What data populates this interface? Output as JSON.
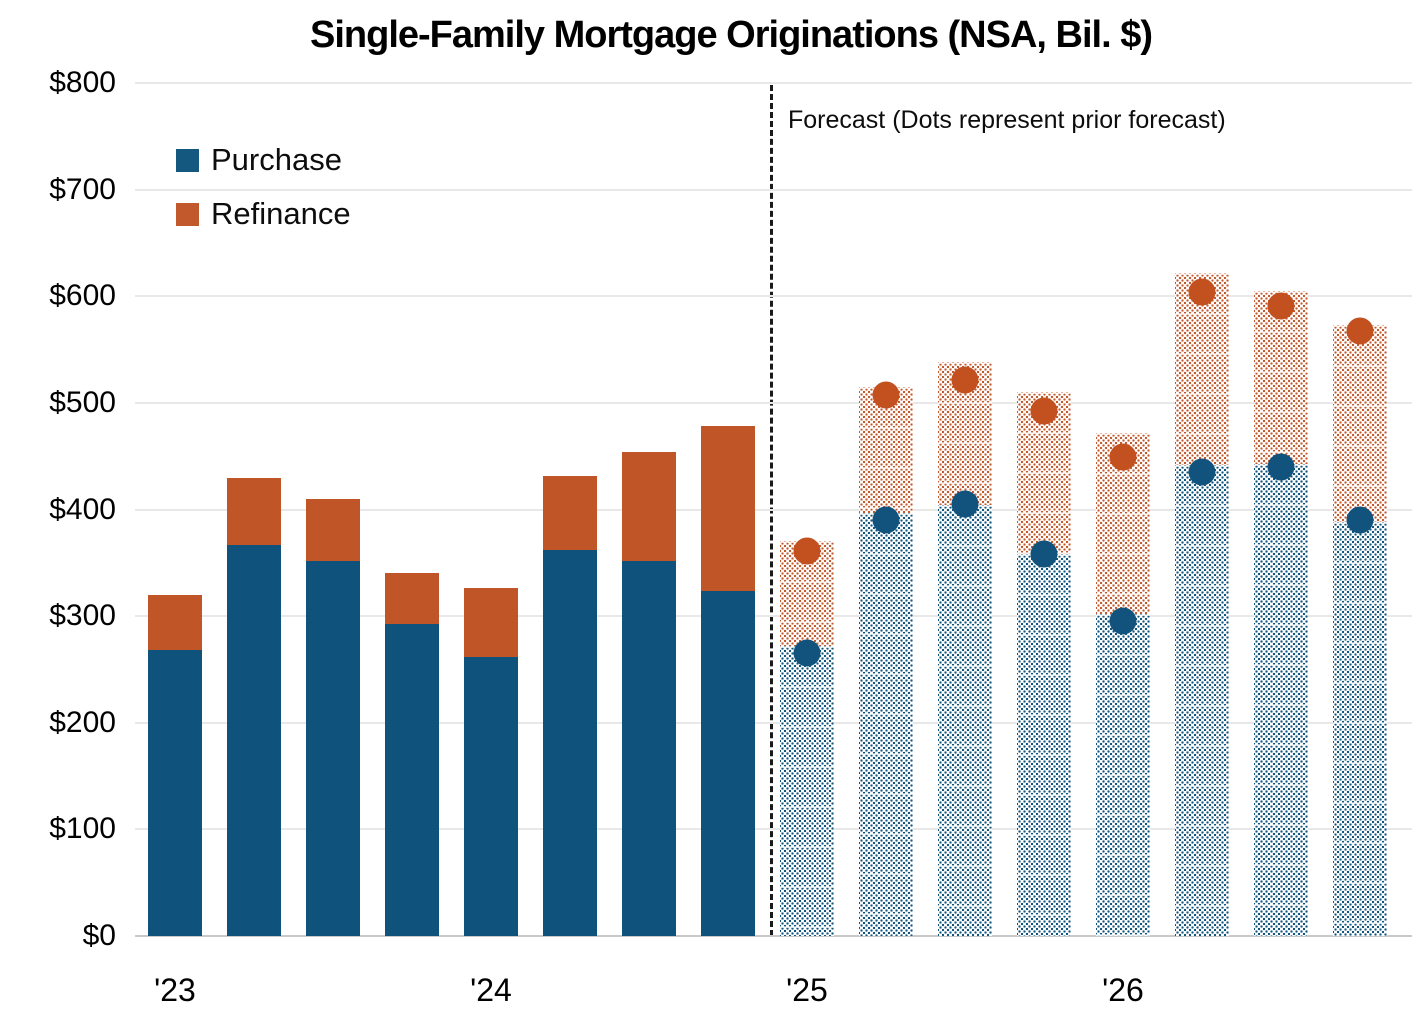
{
  "title": "Single-Family Mortgage Originations (NSA, Bil. $)",
  "annotation": "Forecast (Dots represent prior forecast)",
  "legend": {
    "purchase": "Purchase",
    "refinance": "Refinance"
  },
  "colors": {
    "purchase": "#0f537d",
    "refinance": "#c05527",
    "prior_dot_purchase": "#11537c",
    "prior_dot_refinance": "#c35120",
    "gridline": "#e8e8e8",
    "axis_line": "#c9c9c9"
  },
  "chart_data": {
    "type": "bar",
    "stacked": true,
    "title": "Single-Family Mortgage Originations (NSA, Bil. $)",
    "ylabel": "",
    "xlabel": "",
    "ylim": [
      0,
      800
    ],
    "grid": "horizontal",
    "legend_position": "top-left",
    "n_bars": 16,
    "bars_per_year": 4,
    "yticks": [
      {
        "value": 0,
        "label": "$0"
      },
      {
        "value": 100,
        "label": "$100"
      },
      {
        "value": 200,
        "label": "$200"
      },
      {
        "value": 300,
        "label": "$300"
      },
      {
        "value": 400,
        "label": "$400"
      },
      {
        "value": 500,
        "label": "$500"
      },
      {
        "value": 600,
        "label": "$600"
      },
      {
        "value": 700,
        "label": "$700"
      },
      {
        "value": 800,
        "label": "$800"
      }
    ],
    "xticks": [
      {
        "index": 0,
        "label": "'23"
      },
      {
        "index": 4,
        "label": "'24"
      },
      {
        "index": 8,
        "label": "'25"
      },
      {
        "index": 12,
        "label": "'26"
      }
    ],
    "series": [
      {
        "name": "Purchase",
        "values": [
          268,
          367,
          352,
          293,
          262,
          362,
          352,
          324,
          272,
          397,
          404,
          358,
          302,
          442,
          443,
          388
        ]
      },
      {
        "name": "Refinance",
        "values": [
          52,
          63,
          58,
          47,
          64,
          69,
          102,
          154,
          98,
          118,
          134,
          152,
          170,
          180,
          162,
          185
        ]
      }
    ],
    "stacked_totals": [
      320,
      430,
      410,
      340,
      326,
      431,
      454,
      478,
      370,
      515,
      538,
      510,
      472,
      622,
      605,
      573
    ],
    "forecast_start_index": 8,
    "prior_forecast_dots": {
      "note": "dots shown only on forecast bars, index 8-15",
      "purchase": [
        265,
        390,
        405,
        358,
        295,
        435,
        440,
        390
      ],
      "total": [
        361,
        507,
        521,
        492,
        449,
        604,
        591,
        567
      ]
    }
  }
}
